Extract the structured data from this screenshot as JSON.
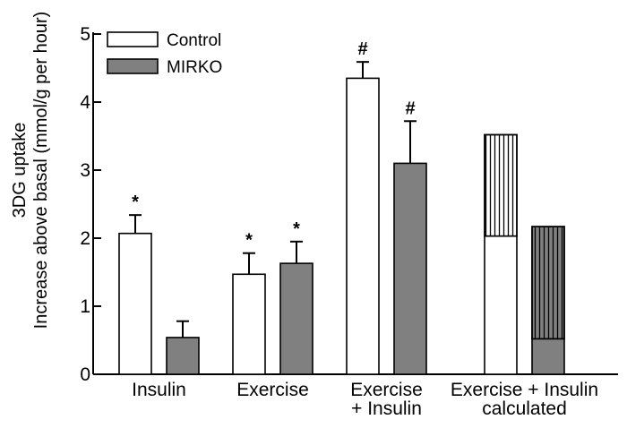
{
  "chart_data": {
    "type": "bar",
    "ylabel_line1": "3DG uptake",
    "ylabel_line2": "Increase above basal (mmol/g per hour)",
    "ylim": [
      0,
      5
    ],
    "yticks": [
      "0",
      "1",
      "2",
      "3",
      "4",
      "5"
    ],
    "categories": [
      {
        "line1": "Insulin",
        "line2": ""
      },
      {
        "line1": "Exercise",
        "line2": ""
      },
      {
        "line1": "Exercise",
        "line2": "+ Insulin"
      },
      {
        "line1": "Exercise + Insulin",
        "line2": "calculated"
      }
    ],
    "legend": {
      "position": "top-left",
      "items": [
        {
          "label": "Control",
          "color": "#ffffff"
        },
        {
          "label": "MIRKO",
          "color": "#808080"
        }
      ]
    },
    "series": [
      {
        "name": "Control",
        "color": "#ffffff",
        "values": [
          2.07,
          1.47,
          4.35,
          2.03
        ],
        "errors": [
          0.27,
          0.31,
          0.24,
          null
        ],
        "markers": [
          "*",
          "*",
          "#",
          ""
        ],
        "stacked_top": [
          null,
          null,
          null,
          3.52
        ]
      },
      {
        "name": "MIRKO",
        "color": "#808080",
        "values": [
          0.54,
          1.63,
          3.1,
          0.52
        ],
        "errors": [
          0.24,
          0.32,
          0.62,
          null
        ],
        "markers": [
          "",
          "*",
          "#",
          ""
        ],
        "stacked_top": [
          null,
          null,
          null,
          2.17
        ]
      }
    ],
    "grid": false
  }
}
